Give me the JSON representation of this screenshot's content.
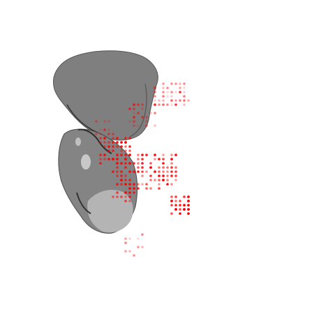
{
  "scene": {
    "background": "#ffffff",
    "mesh_colors": {
      "dark": "#7f7f7f",
      "mid": "#8a8a8a",
      "light": "#b2b2b2",
      "edge": "#3a3a3a"
    },
    "point_color": "#ff0000"
  }
}
